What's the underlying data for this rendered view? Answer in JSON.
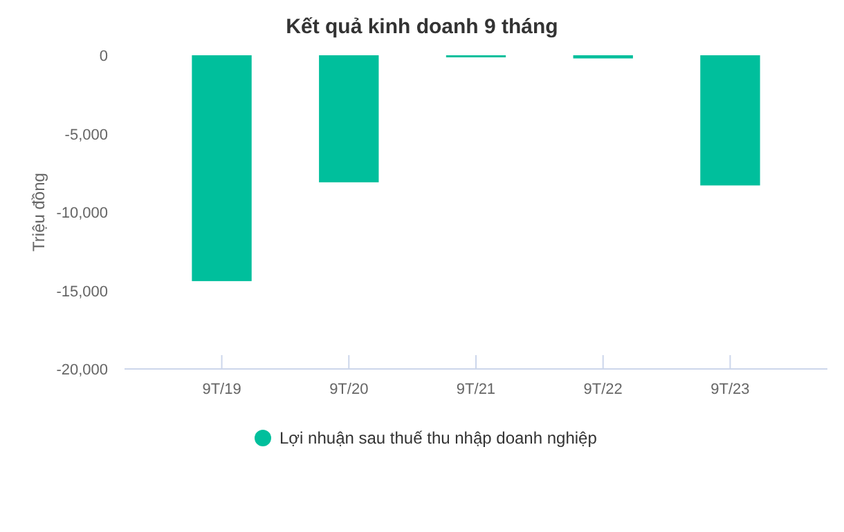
{
  "chart_data": {
    "type": "bar",
    "title": "Kết quả kinh doanh 9 tháng",
    "ylabel": "Triệu đồng",
    "categories": [
      "9T/19",
      "9T/20",
      "9T/21",
      "9T/22",
      "9T/23"
    ],
    "series": [
      {
        "name": "Lợi nhuận sau thuế thu nhập doanh nghiệp",
        "color": "#00bf9c",
        "values": [
          -14400,
          -8100,
          -100,
          -200,
          -8300
        ]
      }
    ],
    "ylim": [
      -20000,
      0
    ],
    "yticks": [
      {
        "value": -20000,
        "label": "-20,000"
      },
      {
        "value": -15000,
        "label": "-15,000"
      },
      {
        "value": -10000,
        "label": "-10,000"
      },
      {
        "value": -5000,
        "label": "-5,000"
      },
      0
    ],
    "grid": false,
    "legend": "bottom"
  }
}
